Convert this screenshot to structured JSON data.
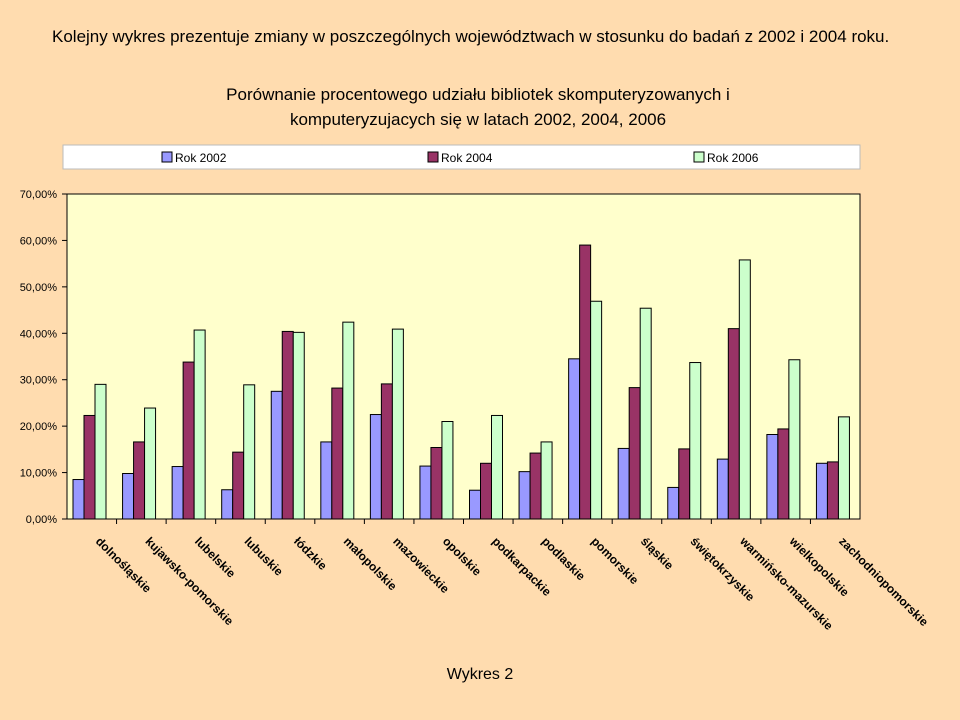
{
  "intro_text": "Kolejny wykres prezentuje zmiany w poszczególnych województwach w stosunku do badań z 2002 i 2004 roku.",
  "caption": "Wykres 2",
  "chart_data": {
    "type": "bar",
    "title_lines": [
      "Porównanie procentowego udziału bibliotek skomputeryzowanych i",
      "komputeryzujacych się  w latach 2002, 2004, 2006"
    ],
    "categories": [
      "dolnośląskie",
      "kujawsko-pomorskie",
      "lubelskie",
      "lubuskie",
      "łódzkie",
      "małopolskie",
      "mazowieckie",
      "opolskie",
      "podkarpackie",
      "podlaskie",
      "pomorskie",
      "śląskie",
      "świętokrzyskie",
      "warmińsko-mazurskie",
      "wielkopolskie",
      "zachodniopomorskie"
    ],
    "series": [
      {
        "name": "Rok 2002",
        "color": "#9999ff",
        "values": [
          8.5,
          9.8,
          11.3,
          6.3,
          27.5,
          16.6,
          22.5,
          11.4,
          6.2,
          10.2,
          34.5,
          15.2,
          6.8,
          12.9,
          18.2,
          12.0
        ]
      },
      {
        "name": "Rok 2004",
        "color": "#993366",
        "values": [
          22.3,
          16.6,
          33.8,
          14.4,
          40.4,
          28.2,
          29.1,
          15.4,
          12.0,
          14.2,
          59.0,
          28.3,
          15.1,
          41.0,
          19.4,
          12.3
        ]
      },
      {
        "name": "Rok 2006",
        "color": "#ccffcc",
        "values": [
          29.0,
          23.9,
          40.7,
          28.9,
          40.2,
          42.4,
          40.9,
          21.0,
          22.3,
          16.6,
          46.9,
          45.4,
          33.7,
          55.8,
          34.3,
          22.0
        ]
      }
    ],
    "ylim": [
      0,
      70
    ],
    "yticks": [
      "0,00%",
      "10,00%",
      "20,00%",
      "30,00%",
      "40,00%",
      "50,00%",
      "60,00%",
      "70,00%"
    ],
    "grid": false,
    "legend_position": "top",
    "plot_background": "#ffffcc"
  }
}
